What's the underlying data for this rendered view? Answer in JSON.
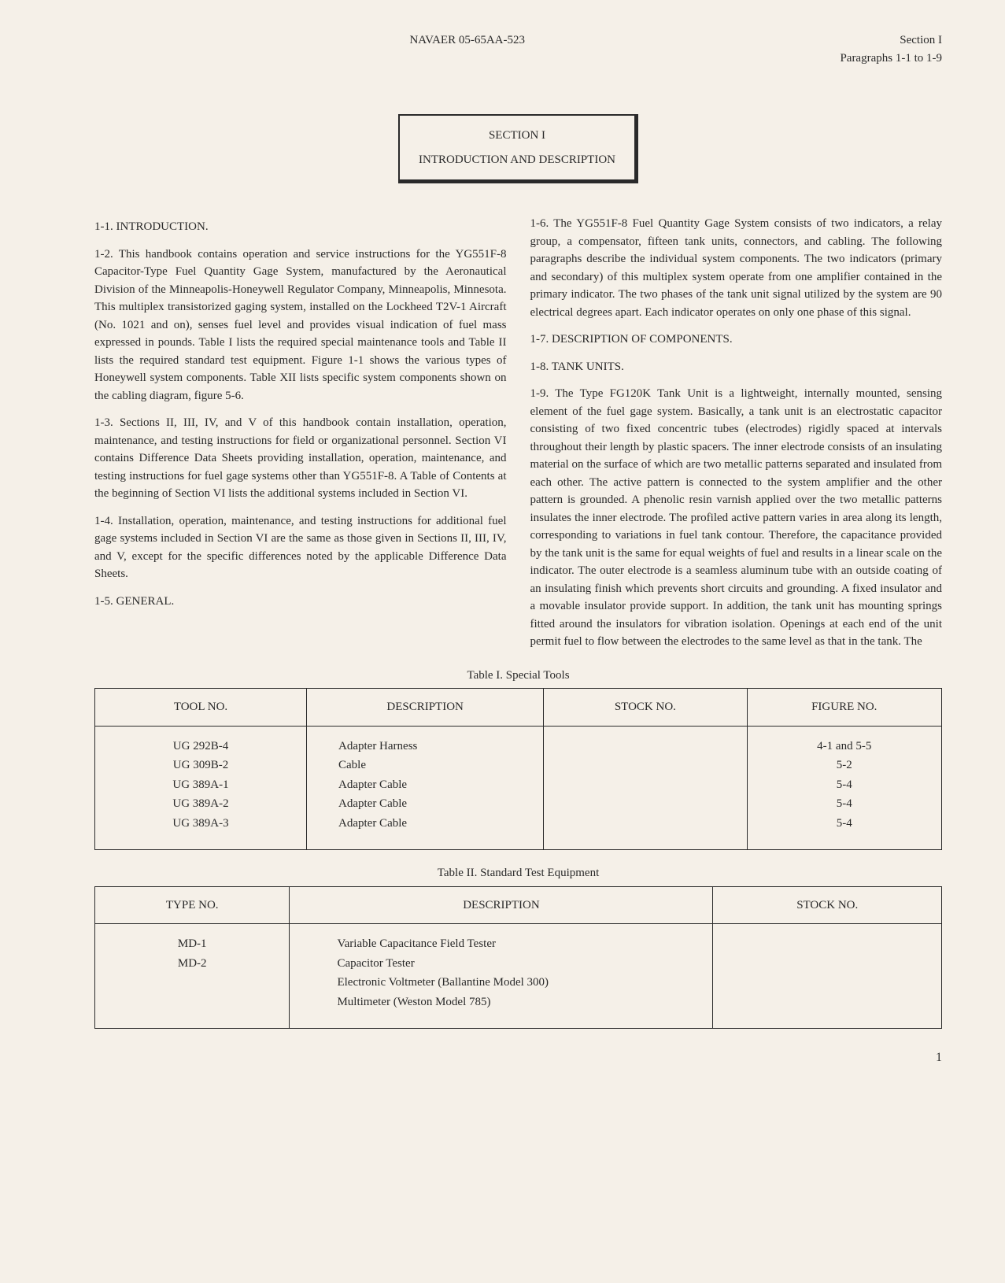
{
  "header": {
    "center": "NAVAER 05-65AA-523",
    "right_line1": "Section I",
    "right_line2": "Paragraphs 1-1 to 1-9"
  },
  "section_box": {
    "title": "SECTION I",
    "subtitle": "INTRODUCTION AND DESCRIPTION"
  },
  "paragraphs": {
    "h1_1": "1-1. INTRODUCTION.",
    "p1_2": "1-2. This handbook contains operation and service instructions for the YG551F-8 Capacitor-Type Fuel Quantity Gage System, manufactured by the Aeronautical Division of the Minneapolis-Honeywell Regulator Company, Minneapolis, Minnesota. This multiplex transistorized gaging system, installed on the Lockheed T2V-1 Aircraft (No. 1021 and on), senses fuel level and provides visual indication of fuel mass expressed in pounds. Table I lists the required special maintenance tools and Table II lists the required standard test equipment. Figure 1-1 shows the various types of Honeywell system components. Table XII lists specific system components shown on the cabling diagram, figure 5-6.",
    "p1_3": "1-3. Sections II, III, IV, and V of this handbook contain installation, operation, maintenance, and testing instructions for field or organizational personnel. Section VI contains Difference Data Sheets providing installation, operation, maintenance, and testing instructions for fuel gage systems other than YG551F-8. A Table of Contents at the beginning of Section VI lists the additional systems included in Section VI.",
    "p1_4": "1-4. Installation, operation, maintenance, and testing instructions for additional fuel gage systems included in Section VI are the same as those given in Sections II, III, IV, and V, except for the specific differences noted by the applicable Difference Data Sheets.",
    "h1_5": "1-5. GENERAL.",
    "p1_6": "1-6. The YG551F-8 Fuel Quantity Gage System consists of two indicators, a relay group, a compensator, fifteen tank units, connectors, and cabling. The following paragraphs describe the individual system components. The two indicators (primary and secondary) of this multiplex system operate from one amplifier contained in the primary indicator. The two phases of the tank unit signal utilized by the system are 90 electrical degrees apart. Each indicator operates on only one phase of this signal.",
    "h1_7": "1-7. DESCRIPTION OF COMPONENTS.",
    "h1_8": "1-8. TANK UNITS.",
    "p1_9": "1-9. The Type FG120K Tank Unit is a lightweight, internally mounted, sensing element of the fuel gage system. Basically, a tank unit is an electrostatic capacitor consisting of two fixed concentric tubes (electrodes) rigidly spaced at intervals throughout their length by plastic spacers. The inner electrode consists of an insulating material on the surface of which are two metallic patterns separated and insulated from each other. The active pattern is connected to the system amplifier and the other pattern is grounded. A phenolic resin varnish applied over the two metallic patterns insulates the inner electrode. The profiled active pattern varies in area along its length, corresponding to variations in fuel tank contour. Therefore, the capacitance provided by the tank unit is the same for equal weights of fuel and results in a linear scale on the indicator. The outer electrode is a seamless aluminum tube with an outside coating of an insulating finish which prevents short circuits and grounding. A fixed insulator and a movable insulator provide support. In addition, the tank unit has mounting springs fitted around the insulators for vibration isolation. Openings at each end of the unit permit fuel to flow between the electrodes to the same level as that in the tank. The"
  },
  "table1": {
    "title": "Table I. Special Tools",
    "headers": [
      "TOOL NO.",
      "DESCRIPTION",
      "STOCK NO.",
      "FIGURE NO."
    ],
    "rows": [
      [
        "UG 292B-4",
        "Adapter Harness",
        "",
        "4-1 and 5-5"
      ],
      [
        "UG 309B-2",
        "Cable",
        "",
        "5-2"
      ],
      [
        "UG 389A-1",
        "Adapter Cable",
        "",
        "5-4"
      ],
      [
        "UG 389A-2",
        "Adapter Cable",
        "",
        "5-4"
      ],
      [
        "UG 389A-3",
        "Adapter Cable",
        "",
        "5-4"
      ]
    ]
  },
  "table2": {
    "title": "Table II. Standard Test Equipment",
    "headers": [
      "TYPE NO.",
      "DESCRIPTION",
      "STOCK NO."
    ],
    "rows": [
      [
        "MD-1",
        "Variable Capacitance Field Tester",
        ""
      ],
      [
        "MD-2",
        "Capacitor Tester",
        ""
      ],
      [
        "",
        "Electronic Voltmeter (Ballantine Model 300)",
        ""
      ],
      [
        "",
        "Multimeter (Weston Model 785)",
        ""
      ]
    ]
  },
  "page_number": "1"
}
